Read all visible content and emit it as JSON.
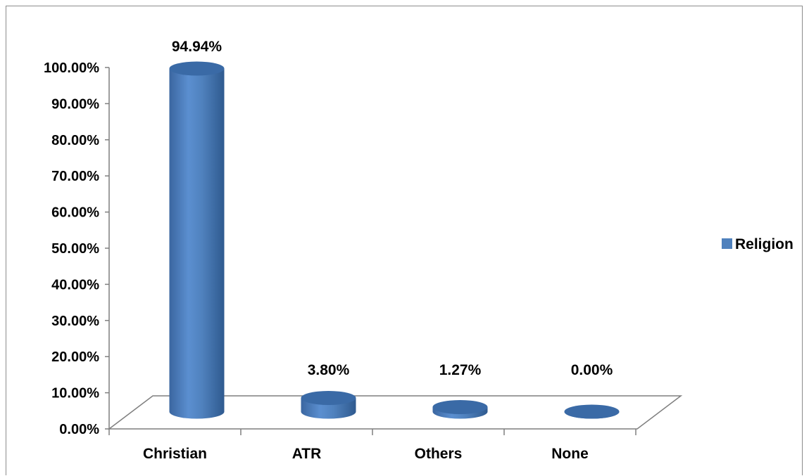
{
  "chart_data": {
    "type": "bar",
    "categories": [
      "Christian",
      "ATR",
      "Others",
      "None"
    ],
    "series": [
      {
        "name": "Religion",
        "values": [
          94.94,
          3.8,
          1.27,
          0.0
        ],
        "color": "#4f81bd"
      }
    ],
    "data_labels": [
      "94.94%",
      "3.80%",
      "1.27%",
      "0.00%"
    ],
    "y_ticks": [
      "0.00%",
      "10.00%",
      "20.00%",
      "30.00%",
      "40.00%",
      "50.00%",
      "60.00%",
      "70.00%",
      "80.00%",
      "90.00%",
      "100.00%"
    ],
    "ylim": [
      0,
      100
    ],
    "bar_shape": "cylinder",
    "legend_position": "right",
    "grid": false,
    "colors": {
      "bar": "#4f81bd",
      "bar_dark": "#2f5a8f",
      "bar_top": "#3a6aa6",
      "axis": "#7f7f7f"
    }
  }
}
